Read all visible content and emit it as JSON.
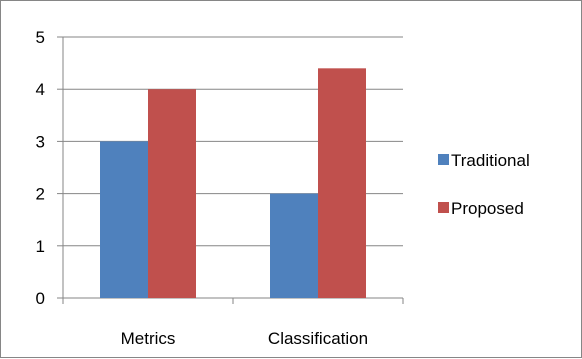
{
  "chart_data": {
    "type": "bar",
    "categories": [
      "Metrics",
      "Classification"
    ],
    "series": [
      {
        "name": "Traditional",
        "values": [
          3,
          2
        ],
        "color": "#4f81bd"
      },
      {
        "name": "Proposed",
        "values": [
          4,
          4.4
        ],
        "color": "#c0504d"
      }
    ],
    "ylim": [
      0,
      5
    ],
    "yticks": [
      "0",
      "1",
      "2",
      "3",
      "4",
      "5"
    ],
    "grid": true,
    "legend_position": "right"
  }
}
